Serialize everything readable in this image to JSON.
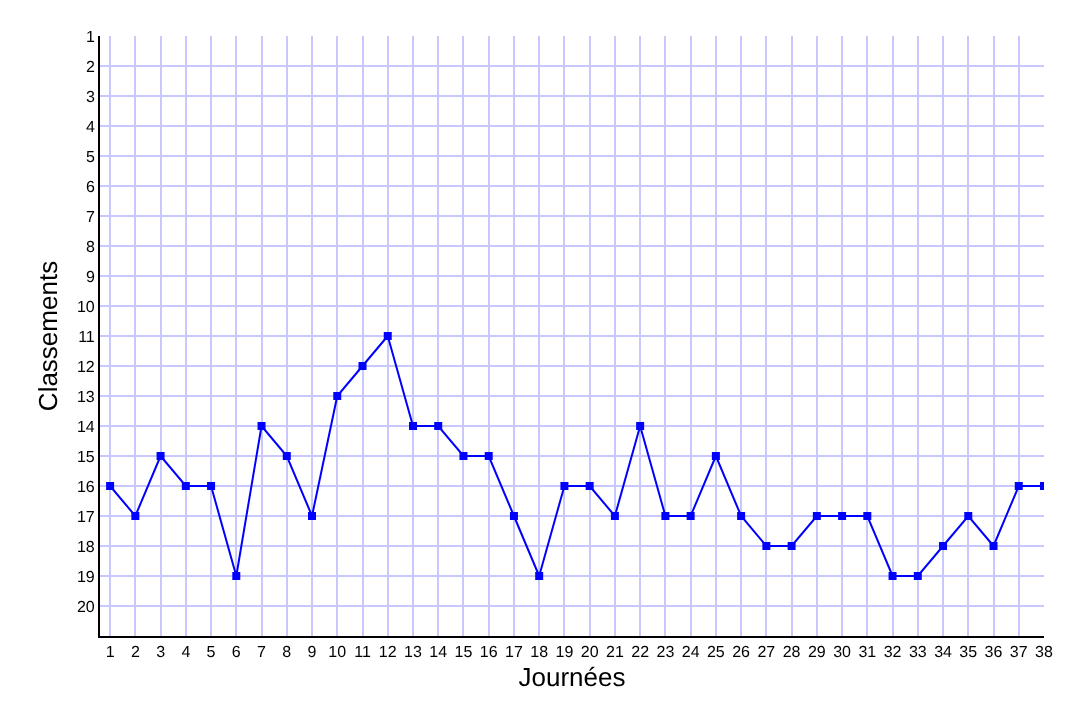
{
  "chart_data": {
    "type": "line",
    "xlabel": "Journées",
    "ylabel": "Classements",
    "x": [
      1,
      2,
      3,
      4,
      5,
      6,
      7,
      8,
      9,
      10,
      11,
      12,
      13,
      14,
      15,
      16,
      17,
      18,
      19,
      20,
      21,
      22,
      23,
      24,
      25,
      26,
      27,
      28,
      29,
      30,
      31,
      32,
      33,
      34,
      35,
      36,
      37,
      38
    ],
    "series": [
      {
        "color": "#0000ff",
        "values": [
          16,
          17,
          15,
          16,
          16,
          19,
          14,
          15,
          17,
          13,
          12,
          11,
          14,
          14,
          15,
          15,
          17,
          19,
          16,
          16,
          17,
          14,
          17,
          17,
          15,
          17,
          18,
          18,
          17,
          17,
          17,
          19,
          19,
          18,
          17,
          18,
          16,
          16
        ]
      }
    ],
    "xlim": [
      0.6,
      38
    ],
    "ylim": [
      21,
      1
    ],
    "xticks": [
      1,
      2,
      3,
      4,
      5,
      6,
      7,
      8,
      9,
      10,
      11,
      12,
      13,
      14,
      15,
      16,
      17,
      18,
      19,
      20,
      21,
      22,
      23,
      24,
      25,
      26,
      27,
      28,
      29,
      30,
      31,
      32,
      33,
      34,
      35,
      36,
      37,
      38
    ],
    "yticks": [
      1,
      2,
      3,
      4,
      5,
      6,
      7,
      8,
      9,
      10,
      11,
      12,
      13,
      14,
      15,
      16,
      17,
      18,
      19,
      20
    ],
    "grid": true,
    "marker": "square",
    "line_style": "solid"
  }
}
